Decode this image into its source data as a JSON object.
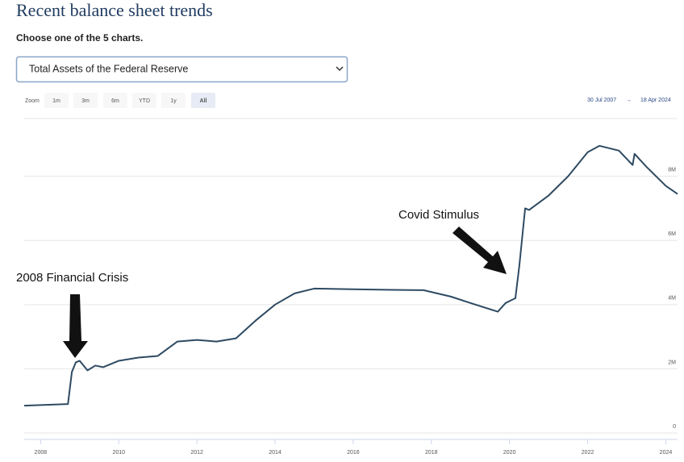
{
  "header": {
    "title": "Recent balance sheet trends",
    "subtitle": "Choose one of the 5 charts."
  },
  "dropdown": {
    "selected": "Total Assets of the Federal Reserve"
  },
  "zoom": {
    "label": "Zoom",
    "buttons": [
      "1m",
      "3m",
      "6m",
      "YTD",
      "1y",
      "All"
    ]
  },
  "range": {
    "from": "30 Jul 2007",
    "separator": "→",
    "to": "18 Apr 2024"
  },
  "chart_data": {
    "type": "line",
    "color": "#2e4a62",
    "grid": true,
    "annotations": [
      "2008 Financial Crisis",
      "Covid Stimulus"
    ],
    "x": [
      2007.58,
      2008.7,
      2008.8,
      2008.9,
      2009.0,
      2009.2,
      2009.4,
      2009.6,
      2010.0,
      2010.5,
      2011.0,
      2011.5,
      2012.0,
      2012.5,
      2013.0,
      2013.5,
      2014.0,
      2014.5,
      2015.0,
      2016.0,
      2017.0,
      2017.8,
      2018.5,
      2019.0,
      2019.7,
      2019.9,
      2020.15,
      2020.25,
      2020.4,
      2020.5,
      2021.0,
      2021.5,
      2022.0,
      2022.3,
      2022.8,
      2023.15,
      2023.2,
      2023.5,
      2024.0,
      2024.3
    ],
    "values": [
      0.85,
      0.9,
      1.9,
      2.2,
      2.25,
      1.95,
      2.1,
      2.05,
      2.25,
      2.35,
      2.4,
      2.85,
      2.9,
      2.85,
      2.95,
      3.5,
      4.0,
      4.35,
      4.5,
      4.48,
      4.46,
      4.45,
      4.25,
      4.05,
      3.78,
      4.05,
      4.2,
      5.2,
      7.0,
      6.95,
      7.4,
      8.0,
      8.75,
      8.95,
      8.8,
      8.35,
      8.7,
      8.3,
      7.7,
      7.45
    ],
    "xlim": [
      2007.58,
      2024.3
    ],
    "xticks": [
      2008,
      2010,
      2012,
      2014,
      2016,
      2018,
      2020,
      2022,
      2024
    ],
    "ylim": [
      0,
      9.8
    ],
    "yticks": [
      0,
      {
        "value": 2,
        "label": "2M"
      },
      {
        "value": 4,
        "label": "4M"
      },
      {
        "value": 6,
        "label": "6M"
      },
      {
        "value": 8,
        "label": "8M"
      }
    ]
  }
}
